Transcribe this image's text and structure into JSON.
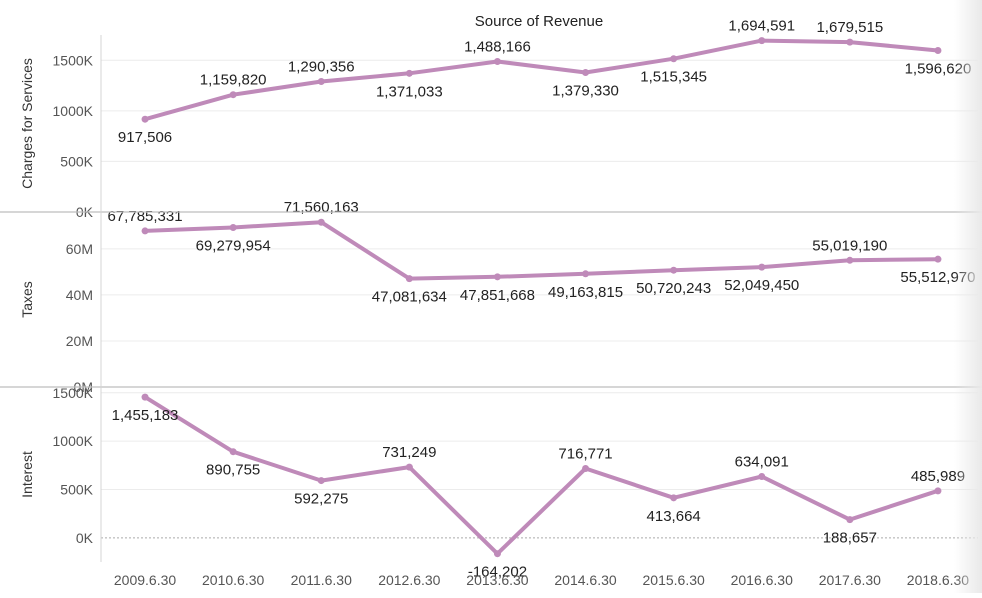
{
  "chart_data": {
    "type": "line",
    "title": "Source of Revenue",
    "categories": [
      "2009.6.30",
      "2010.6.30",
      "2011.6.30",
      "2012.6.30",
      "2013.6.30",
      "2014.6.30",
      "2015.6.30",
      "2016.6.30",
      "2017.6.30",
      "2018.6.30"
    ],
    "line_color": "#bf8ab9",
    "panels": [
      {
        "ylabel": "Charges for Services",
        "ylim": [
          0,
          1750000
        ],
        "yticks": [
          0,
          500000,
          1000000,
          1500000
        ],
        "ytick_labels": [
          "0K",
          "500K",
          "1000K",
          "1500K"
        ],
        "values": [
          917506,
          1159820,
          1290356,
          1371033,
          1488166,
          1379330,
          1515345,
          1694591,
          1679515,
          1596620
        ],
        "data_labels": [
          "917,506",
          "1,159,820",
          "1,290,356",
          "1,371,033",
          "1,488,166",
          "1,379,330",
          "1,515,345",
          "1,694,591",
          "1,679,515",
          "1,596,620"
        ]
      },
      {
        "ylabel": "Taxes",
        "ylim": [
          0,
          76000000
        ],
        "yticks": [
          0,
          20000000,
          40000000,
          60000000
        ],
        "ytick_labels": [
          "0M",
          "20M",
          "40M",
          "60M"
        ],
        "values": [
          67785331,
          69279954,
          71560163,
          47081634,
          47851668,
          49163815,
          50720243,
          52049450,
          55019190,
          55512970
        ],
        "data_labels": [
          "67,785,331",
          "69,279,954",
          "71,560,163",
          "47,081,634",
          "47,851,668",
          "49,163,815",
          "50,720,243",
          "52,049,450",
          "55,019,190",
          "55,512,970"
        ]
      },
      {
        "ylabel": "Interest",
        "ylim": [
          -250000,
          1560000
        ],
        "yticks": [
          0,
          500000,
          1000000,
          1500000
        ],
        "ytick_labels": [
          "0K",
          "500K",
          "1000K",
          "1500K"
        ],
        "values": [
          1455183,
          890755,
          592275,
          731249,
          -164202,
          716771,
          413664,
          634091,
          188657,
          485989
        ],
        "data_labels": [
          "1,455,183",
          "890,755",
          "592,275",
          "731,249",
          "-164,202",
          "716,771",
          "413,664",
          "634,091",
          "188,657",
          "485,989"
        ],
        "zero_line": true
      }
    ]
  }
}
